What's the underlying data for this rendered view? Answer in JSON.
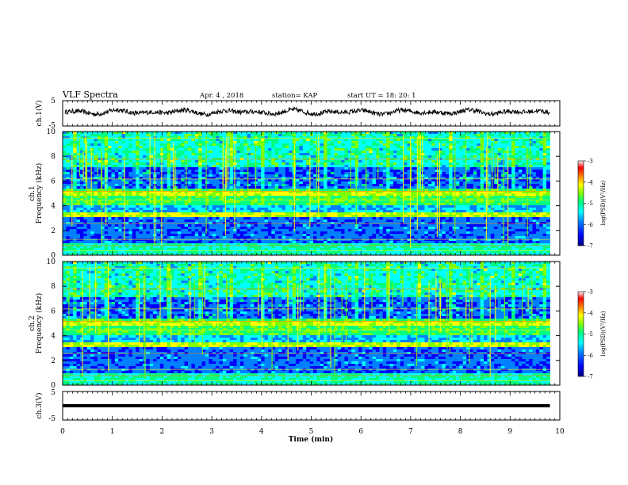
{
  "header": {
    "title": "VLF Spectra",
    "date": "Apr. 4 , 2018",
    "station": "station= KAP",
    "start": "start UT = 18: 20: 1"
  },
  "colorbar": {
    "label": "log(PSD)(V²/Hz)",
    "ticks": [
      "-3",
      "-4",
      "-5",
      "-6",
      "-7"
    ],
    "colors": [
      "#000080",
      "#0000ff",
      "#0080ff",
      "#00ffff",
      "#00ff80",
      "#80ff00",
      "#ffff00",
      "#ff8000",
      "#ff0000",
      "#ffffff"
    ]
  },
  "chart_data": [
    {
      "type": "line",
      "panel": "ch1-waveform",
      "ylabel": "ch.1(V)",
      "yticks": [
        "5",
        "-5"
      ],
      "ylim": [
        -5,
        5
      ],
      "xlim": [
        0,
        10
      ],
      "xlabel": "",
      "description_of_trace": "noisy waveform oscillating roughly between -1 and 2 V, mean near 0.5 V, duration 0 to 9.8 min"
    },
    {
      "type": "heatmap",
      "panel": "ch1-spectrogram",
      "ylabel": "Frequency (kHz)",
      "channel_label": "ch.1",
      "yticks": [
        "0",
        "2",
        "4",
        "6",
        "8",
        "10"
      ],
      "ylim": [
        0,
        10
      ],
      "xlim": [
        0,
        10
      ],
      "data_end_min": 9.8
    },
    {
      "type": "heatmap",
      "panel": "ch2-spectrogram",
      "ylabel": "Frequency (kHz)",
      "channel_label": "ch.2",
      "yticks": [
        "0",
        "2",
        "4",
        "6",
        "8",
        "10"
      ],
      "ylim": [
        0,
        10
      ],
      "xlim": [
        0,
        10
      ],
      "data_end_min": 9.8
    },
    {
      "type": "line",
      "panel": "ch3-waveform",
      "ylabel": "ch.3(V)",
      "yticks": [
        "5",
        "-5"
      ],
      "ylim": [
        -5,
        5
      ],
      "xlim": [
        0,
        10
      ],
      "constant_value": 0,
      "xlabel": "Time (min)",
      "xticks": [
        "0",
        "1",
        "2",
        "3",
        "4",
        "5",
        "6",
        "7",
        "8",
        "9",
        "10"
      ]
    }
  ]
}
